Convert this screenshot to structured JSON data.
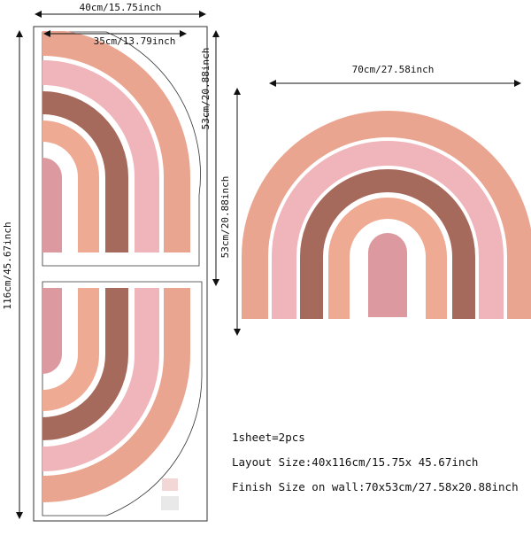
{
  "dimensions": {
    "layout_width": "40cm/15.75inch",
    "piece_width": "35cm/13.79inch",
    "piece_height": "53cm/20.88inch",
    "layout_height": "116cm/45.67inch",
    "finish_width": "70cm/27.58inch",
    "finish_height": "53cm/20.88inch"
  },
  "specs": [
    "1sheet=2pcs",
    "Layout Size:40x116cm/15.75x 45.67inch",
    "Finish Size on wall:70x53cm/27.58x20.88inch"
  ]
}
